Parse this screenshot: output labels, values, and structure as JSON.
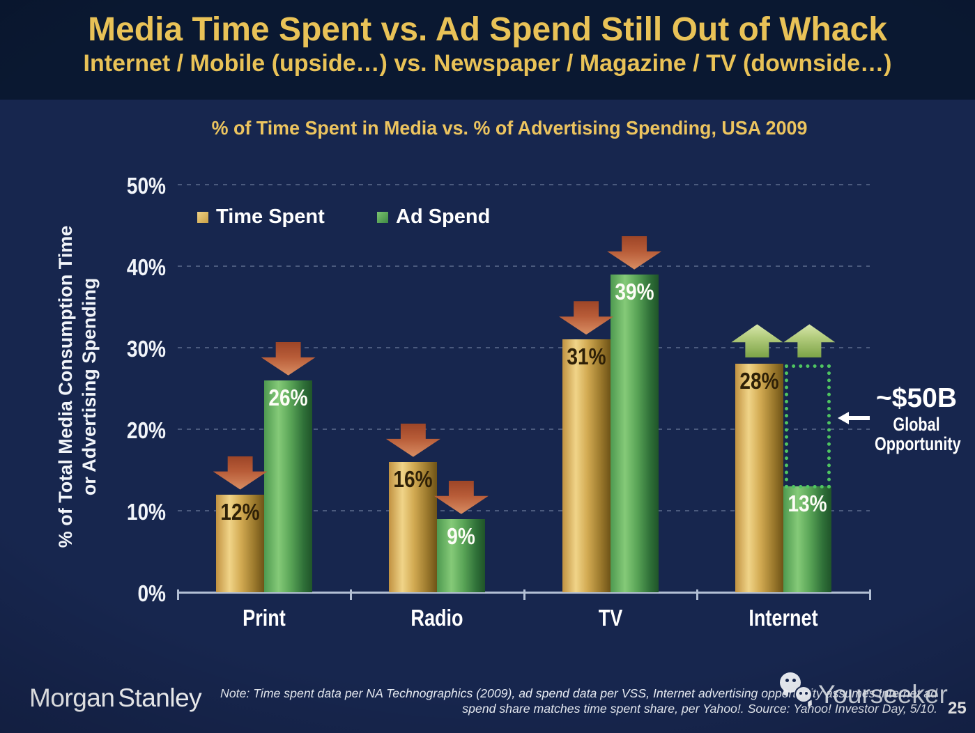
{
  "slide": {
    "title": "Media Time Spent vs. Ad Spend Still Out of Whack",
    "subtitle": "Internet / Mobile (upside…) vs. Newspaper / Magazine / TV (downside…)",
    "page_number": "25"
  },
  "chart_data": {
    "type": "bar",
    "title": "% of Time Spent in Media vs. % of Advertising Spending, USA 2009",
    "categories": [
      "Print",
      "Radio",
      "TV",
      "Internet"
    ],
    "series": [
      {
        "name": "Time Spent",
        "values": [
          12,
          16,
          31,
          28
        ],
        "labels": [
          "12%",
          "16%",
          "31%",
          "28%"
        ]
      },
      {
        "name": "Ad Spend",
        "values": [
          26,
          9,
          39,
          13
        ],
        "labels": [
          "26%",
          "9%",
          "39%",
          "13%"
        ]
      }
    ],
    "trend_arrows": [
      "down",
      "down",
      "down",
      "up"
    ],
    "ylabel_line1": "% of Total Media Consumption Time",
    "ylabel_line2": "or Advertising Spending",
    "yticks": [
      {
        "label": "0%",
        "value": 0
      },
      {
        "label": "10%",
        "value": 10
      },
      {
        "label": "20%",
        "value": 20
      },
      {
        "label": "30%",
        "value": 30
      },
      {
        "label": "40%",
        "value": 40
      },
      {
        "label": "50%",
        "value": 50
      }
    ],
    "ylim": [
      0,
      50
    ],
    "grid": "dashed horizontal",
    "legend_position": "top-left inside plot"
  },
  "annotation": {
    "value": "~$50B",
    "label_line1": "Global",
    "label_line2": "Opportunity"
  },
  "footer": {
    "logo": "Morgan Stanley",
    "note_line1": "Note: Time spent data per NA Technographics (2009), ad spend data per VSS, Internet advertising opportunity assumes Internet ad",
    "note_line2": "spend share matches time spent share, per Yahoo!. Source: Yahoo! Investor Day, 5/10.",
    "watermark": "Yourseeker",
    "page": "25"
  },
  "colors": {
    "background": "#17264e",
    "header_background": "#0a1831",
    "title_gold": "#e9c257",
    "bar_gold": "#d9b05c",
    "bar_green": "#5aa75a",
    "arrow_down_red": "#bb6a44",
    "arrow_up_green": "#a8c477",
    "dotted_box_green": "#4fc561"
  }
}
